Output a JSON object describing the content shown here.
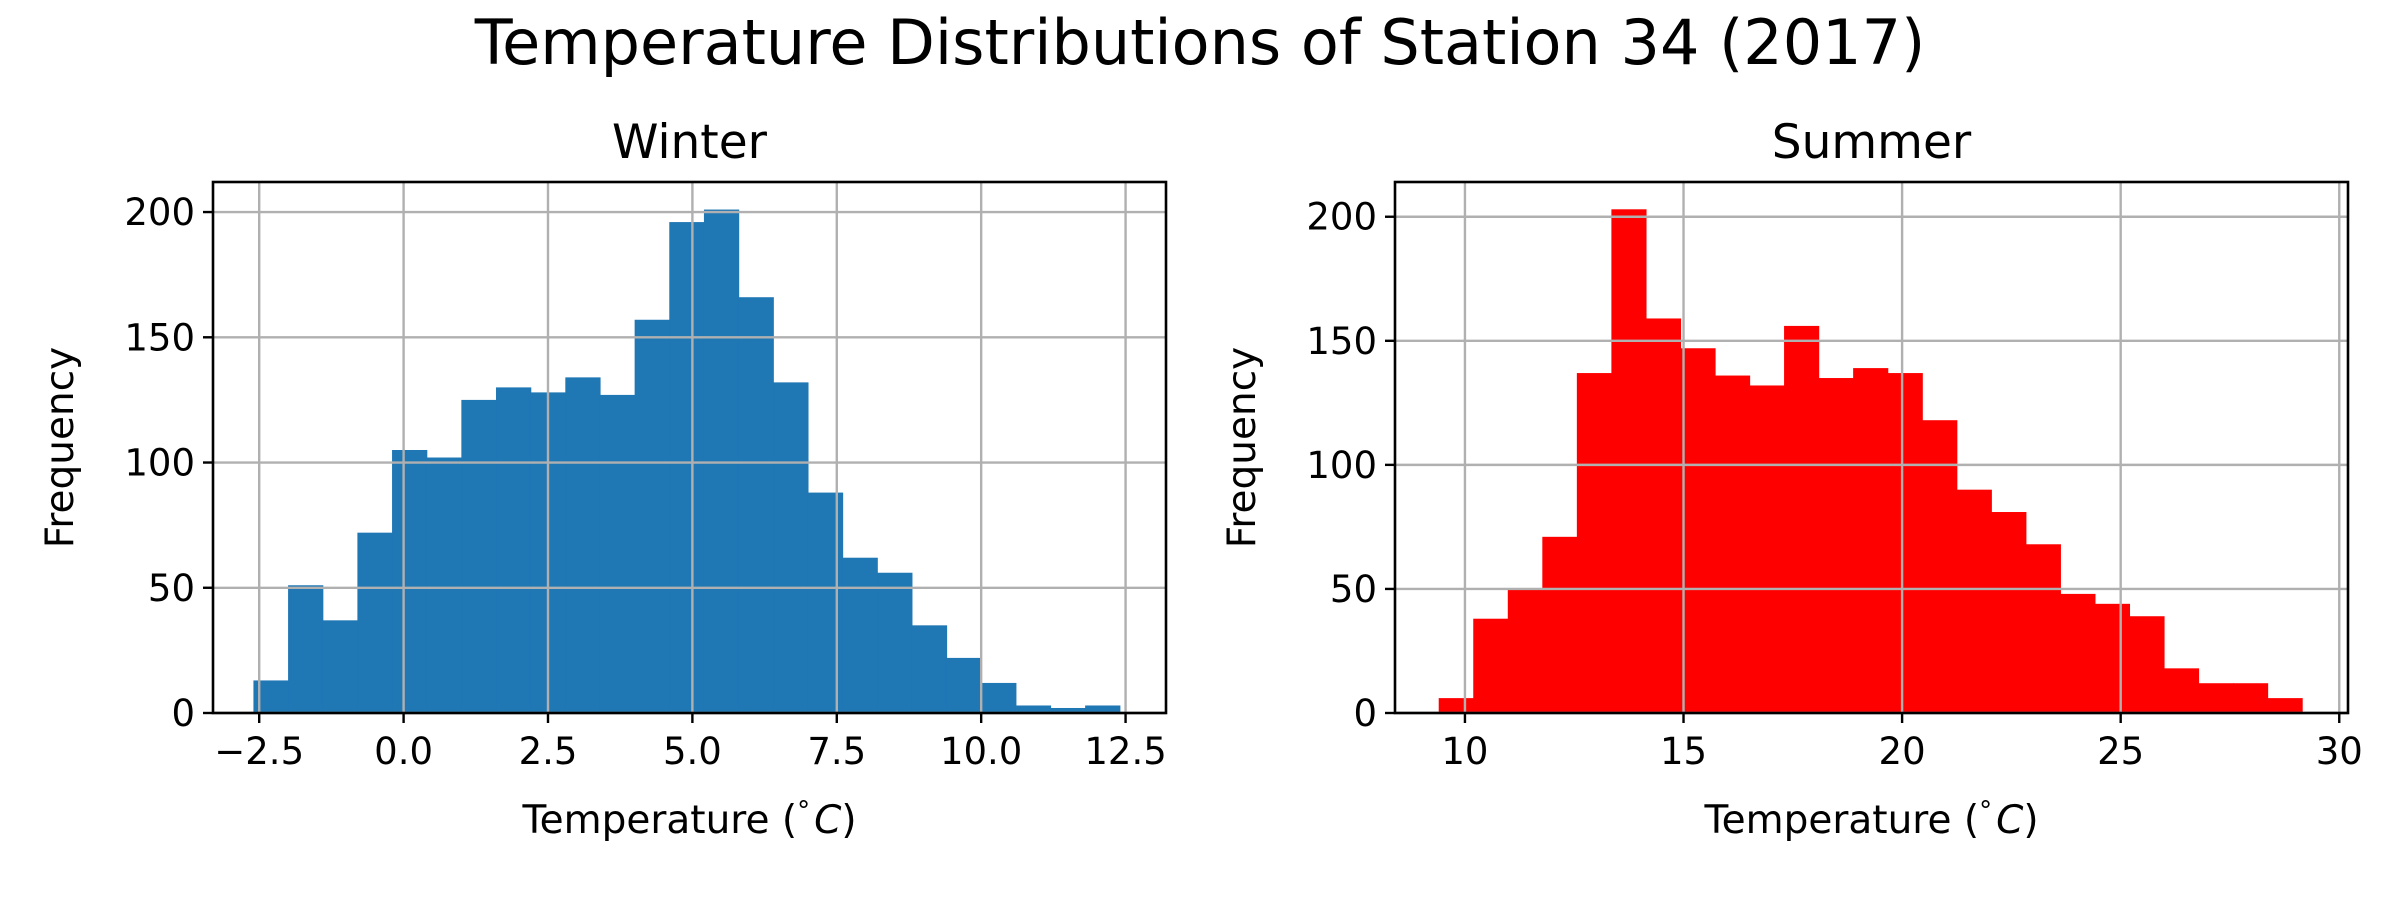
{
  "figure": {
    "title": "Temperature Distributions of Station 34 (2017)"
  },
  "chart_data": [
    {
      "type": "bar",
      "subtype": "histogram",
      "title": "Winter",
      "xlabel": "Temperature ($^\\circ C$)",
      "xlabel_parts": [
        "Temperature (",
        "°",
        "C",
        ")"
      ],
      "ylabel": "Frequency",
      "color": "#1f77b4",
      "grid": true,
      "xlim": [
        -3.3,
        13.2
      ],
      "ylim": [
        0,
        212
      ],
      "xticks": [
        -2.5,
        0.0,
        2.5,
        5.0,
        7.5,
        10.0,
        12.5
      ],
      "xtick_labels": [
        "−2.5",
        "0.0",
        "2.5",
        "5.0",
        "7.5",
        "10.0",
        "12.5"
      ],
      "yticks": [
        0,
        50,
        100,
        150,
        200
      ],
      "ytick_labels": [
        "0",
        "50",
        "100",
        "150",
        "200"
      ],
      "bin_edges": [
        -2.6,
        -2.0,
        -1.4,
        -0.8,
        -0.2,
        0.4,
        1.0,
        1.6,
        2.2,
        2.8,
        3.4,
        4.0,
        4.6,
        5.2,
        5.8,
        6.4,
        7.0,
        7.6,
        8.2,
        8.8,
        9.4,
        10.0,
        10.6,
        11.2,
        11.8,
        12.4
      ],
      "counts": [
        13,
        51,
        37,
        72,
        105,
        102,
        125,
        130,
        128,
        134,
        127,
        157,
        196,
        201,
        166,
        132,
        88,
        62,
        56,
        35,
        22,
        12,
        3,
        2,
        3
      ]
    },
    {
      "type": "bar",
      "subtype": "histogram",
      "title": "Summer",
      "xlabel": "Temperature ($^\\circ C$)",
      "xlabel_parts": [
        "Temperature (",
        "°",
        "C",
        ")"
      ],
      "ylabel": "Frequency",
      "color": "#ff0000",
      "grid": true,
      "xlim": [
        8.4,
        30.2
      ],
      "ylim": [
        0,
        214
      ],
      "xticks": [
        10,
        15,
        20,
        25,
        30
      ],
      "xtick_labels": [
        "10",
        "15",
        "20",
        "25",
        "30"
      ],
      "yticks": [
        0,
        50,
        100,
        150,
        200
      ],
      "ytick_labels": [
        "0",
        "50",
        "100",
        "150",
        "200"
      ],
      "bin_edges": [
        9.4,
        10.19,
        10.98,
        11.77,
        12.56,
        13.35,
        14.14,
        14.93,
        15.72,
        16.51,
        17.3,
        18.09,
        18.88,
        19.67,
        20.46,
        21.25,
        22.04,
        22.83,
        23.62,
        24.41,
        25.2,
        25.99,
        26.78,
        27.57,
        28.36,
        29.15
      ],
      "counts": [
        6,
        38,
        50,
        71,
        137,
        203,
        159,
        147,
        136,
        132,
        156,
        135,
        139,
        137,
        118,
        90,
        81,
        68,
        48,
        44,
        39,
        18,
        12,
        12,
        6
      ]
    }
  ]
}
